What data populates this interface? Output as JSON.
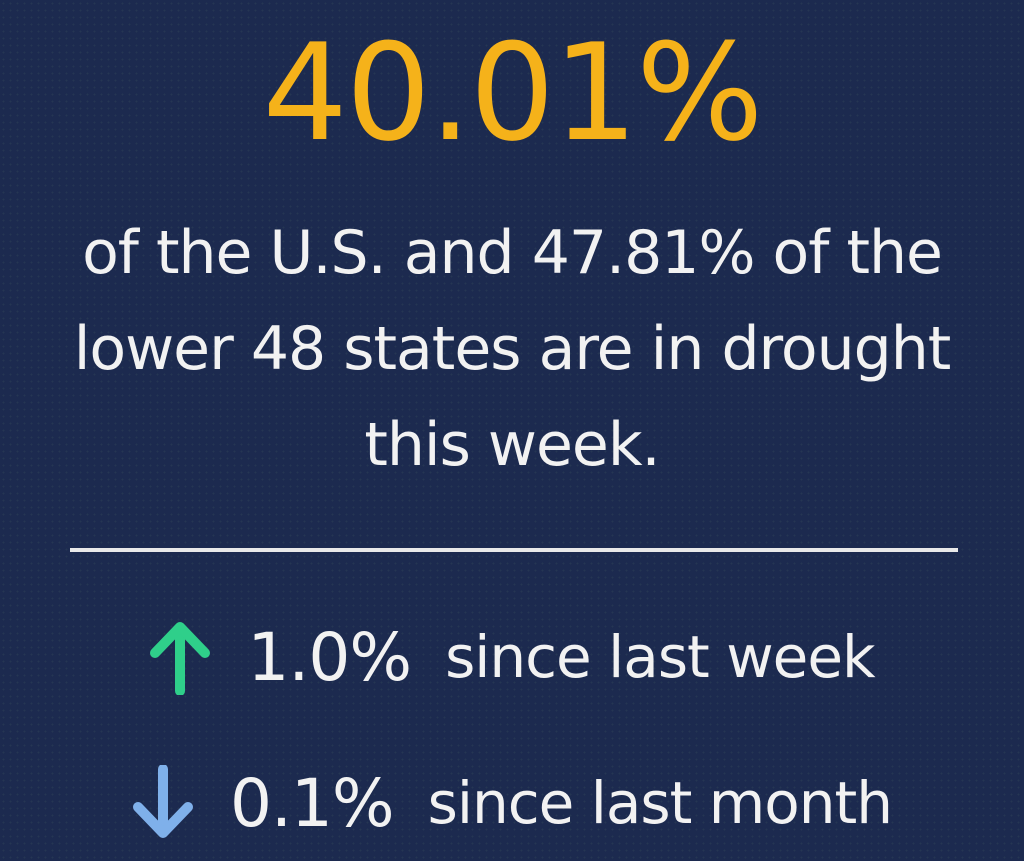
{
  "headline": {
    "percent": "40.01%",
    "description": "of the U.S. and 47.81% of the lower 48 states are in drought this week."
  },
  "changes": [
    {
      "direction": "up",
      "icon": "arrow-up-icon",
      "color": "#2fcf8a",
      "value": "1.0%",
      "label": "since last week"
    },
    {
      "direction": "down",
      "icon": "arrow-down-icon",
      "color": "#7fb0ea",
      "value": "0.1%",
      "label": "since last month"
    }
  ],
  "colors": {
    "background": "#1c2a4f",
    "accent": "#f5b21a",
    "text": "#f2f2f2"
  }
}
